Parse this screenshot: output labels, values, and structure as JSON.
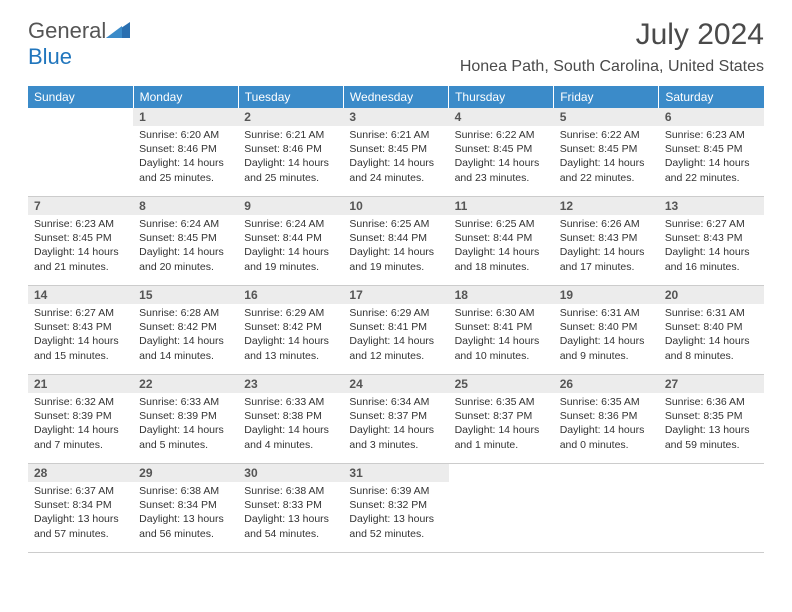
{
  "logo": {
    "text1": "General",
    "text2": "Blue"
  },
  "title": "July 2024",
  "location": "Honea Path, South Carolina, United States",
  "weekdays": [
    "Sunday",
    "Monday",
    "Tuesday",
    "Wednesday",
    "Thursday",
    "Friday",
    "Saturday"
  ],
  "colors": {
    "header_bg": "#3b8bc9",
    "daynum_bg": "#ececec"
  },
  "weeks": [
    [
      {
        "n": "",
        "sr": "",
        "ss": "",
        "dl": ""
      },
      {
        "n": "1",
        "sr": "Sunrise: 6:20 AM",
        "ss": "Sunset: 8:46 PM",
        "dl": "Daylight: 14 hours and 25 minutes."
      },
      {
        "n": "2",
        "sr": "Sunrise: 6:21 AM",
        "ss": "Sunset: 8:46 PM",
        "dl": "Daylight: 14 hours and 25 minutes."
      },
      {
        "n": "3",
        "sr": "Sunrise: 6:21 AM",
        "ss": "Sunset: 8:45 PM",
        "dl": "Daylight: 14 hours and 24 minutes."
      },
      {
        "n": "4",
        "sr": "Sunrise: 6:22 AM",
        "ss": "Sunset: 8:45 PM",
        "dl": "Daylight: 14 hours and 23 minutes."
      },
      {
        "n": "5",
        "sr": "Sunrise: 6:22 AM",
        "ss": "Sunset: 8:45 PM",
        "dl": "Daylight: 14 hours and 22 minutes."
      },
      {
        "n": "6",
        "sr": "Sunrise: 6:23 AM",
        "ss": "Sunset: 8:45 PM",
        "dl": "Daylight: 14 hours and 22 minutes."
      }
    ],
    [
      {
        "n": "7",
        "sr": "Sunrise: 6:23 AM",
        "ss": "Sunset: 8:45 PM",
        "dl": "Daylight: 14 hours and 21 minutes."
      },
      {
        "n": "8",
        "sr": "Sunrise: 6:24 AM",
        "ss": "Sunset: 8:45 PM",
        "dl": "Daylight: 14 hours and 20 minutes."
      },
      {
        "n": "9",
        "sr": "Sunrise: 6:24 AM",
        "ss": "Sunset: 8:44 PM",
        "dl": "Daylight: 14 hours and 19 minutes."
      },
      {
        "n": "10",
        "sr": "Sunrise: 6:25 AM",
        "ss": "Sunset: 8:44 PM",
        "dl": "Daylight: 14 hours and 19 minutes."
      },
      {
        "n": "11",
        "sr": "Sunrise: 6:25 AM",
        "ss": "Sunset: 8:44 PM",
        "dl": "Daylight: 14 hours and 18 minutes."
      },
      {
        "n": "12",
        "sr": "Sunrise: 6:26 AM",
        "ss": "Sunset: 8:43 PM",
        "dl": "Daylight: 14 hours and 17 minutes."
      },
      {
        "n": "13",
        "sr": "Sunrise: 6:27 AM",
        "ss": "Sunset: 8:43 PM",
        "dl": "Daylight: 14 hours and 16 minutes."
      }
    ],
    [
      {
        "n": "14",
        "sr": "Sunrise: 6:27 AM",
        "ss": "Sunset: 8:43 PM",
        "dl": "Daylight: 14 hours and 15 minutes."
      },
      {
        "n": "15",
        "sr": "Sunrise: 6:28 AM",
        "ss": "Sunset: 8:42 PM",
        "dl": "Daylight: 14 hours and 14 minutes."
      },
      {
        "n": "16",
        "sr": "Sunrise: 6:29 AM",
        "ss": "Sunset: 8:42 PM",
        "dl": "Daylight: 14 hours and 13 minutes."
      },
      {
        "n": "17",
        "sr": "Sunrise: 6:29 AM",
        "ss": "Sunset: 8:41 PM",
        "dl": "Daylight: 14 hours and 12 minutes."
      },
      {
        "n": "18",
        "sr": "Sunrise: 6:30 AM",
        "ss": "Sunset: 8:41 PM",
        "dl": "Daylight: 14 hours and 10 minutes."
      },
      {
        "n": "19",
        "sr": "Sunrise: 6:31 AM",
        "ss": "Sunset: 8:40 PM",
        "dl": "Daylight: 14 hours and 9 minutes."
      },
      {
        "n": "20",
        "sr": "Sunrise: 6:31 AM",
        "ss": "Sunset: 8:40 PM",
        "dl": "Daylight: 14 hours and 8 minutes."
      }
    ],
    [
      {
        "n": "21",
        "sr": "Sunrise: 6:32 AM",
        "ss": "Sunset: 8:39 PM",
        "dl": "Daylight: 14 hours and 7 minutes."
      },
      {
        "n": "22",
        "sr": "Sunrise: 6:33 AM",
        "ss": "Sunset: 8:39 PM",
        "dl": "Daylight: 14 hours and 5 minutes."
      },
      {
        "n": "23",
        "sr": "Sunrise: 6:33 AM",
        "ss": "Sunset: 8:38 PM",
        "dl": "Daylight: 14 hours and 4 minutes."
      },
      {
        "n": "24",
        "sr": "Sunrise: 6:34 AM",
        "ss": "Sunset: 8:37 PM",
        "dl": "Daylight: 14 hours and 3 minutes."
      },
      {
        "n": "25",
        "sr": "Sunrise: 6:35 AM",
        "ss": "Sunset: 8:37 PM",
        "dl": "Daylight: 14 hours and 1 minute."
      },
      {
        "n": "26",
        "sr": "Sunrise: 6:35 AM",
        "ss": "Sunset: 8:36 PM",
        "dl": "Daylight: 14 hours and 0 minutes."
      },
      {
        "n": "27",
        "sr": "Sunrise: 6:36 AM",
        "ss": "Sunset: 8:35 PM",
        "dl": "Daylight: 13 hours and 59 minutes."
      }
    ],
    [
      {
        "n": "28",
        "sr": "Sunrise: 6:37 AM",
        "ss": "Sunset: 8:34 PM",
        "dl": "Daylight: 13 hours and 57 minutes."
      },
      {
        "n": "29",
        "sr": "Sunrise: 6:38 AM",
        "ss": "Sunset: 8:34 PM",
        "dl": "Daylight: 13 hours and 56 minutes."
      },
      {
        "n": "30",
        "sr": "Sunrise: 6:38 AM",
        "ss": "Sunset: 8:33 PM",
        "dl": "Daylight: 13 hours and 54 minutes."
      },
      {
        "n": "31",
        "sr": "Sunrise: 6:39 AM",
        "ss": "Sunset: 8:32 PM",
        "dl": "Daylight: 13 hours and 52 minutes."
      },
      {
        "n": "",
        "sr": "",
        "ss": "",
        "dl": ""
      },
      {
        "n": "",
        "sr": "",
        "ss": "",
        "dl": ""
      },
      {
        "n": "",
        "sr": "",
        "ss": "",
        "dl": ""
      }
    ]
  ]
}
